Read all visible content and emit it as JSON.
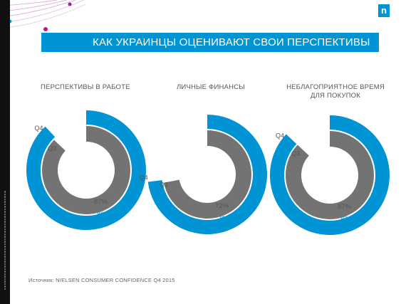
{
  "logo": {
    "text": "n",
    "color": "#0094d4"
  },
  "title": "КАК УКРАИНЦЫ ОЦЕНИВАЮТ СВОИ ПЕРСПЕКТИВЫ",
  "source": "Источник: NIELSEN CONSUMER  CONFIDENCE Q4 2015",
  "colors": {
    "outer": "#0094d4",
    "inner": "#737373",
    "accent": "#0094d4",
    "deco_line": "#d9a2d4",
    "deco_dot": "#c4147c"
  },
  "chart_data": [
    {
      "type": "pie",
      "title": "ПЕРСПЕКТИВЫ В РАБОТЕ",
      "series": [
        {
          "name": "Q4",
          "value": 88
        },
        {
          "name": "Q3",
          "value": 87
        }
      ],
      "labels": [
        "88%",
        "87%"
      ]
    },
    {
      "type": "pie",
      "title": "ЛИЧНЫЕ ФИНАНСЫ",
      "series": [
        {
          "name": "Q4",
          "value": 73
        },
        {
          "name": "Q3",
          "value": 72
        }
      ],
      "labels": [
        "73%",
        "72%"
      ]
    },
    {
      "type": "pie",
      "title": "НЕБЛАГОПРИЯТНОЕ ВРЕМЯ ДЛЯ ПОКУПОК",
      "series": [
        {
          "name": "Q4",
          "value": 87
        },
        {
          "name": "Q3",
          "value": 87
        }
      ],
      "labels": [
        "87%",
        "87%"
      ]
    }
  ]
}
